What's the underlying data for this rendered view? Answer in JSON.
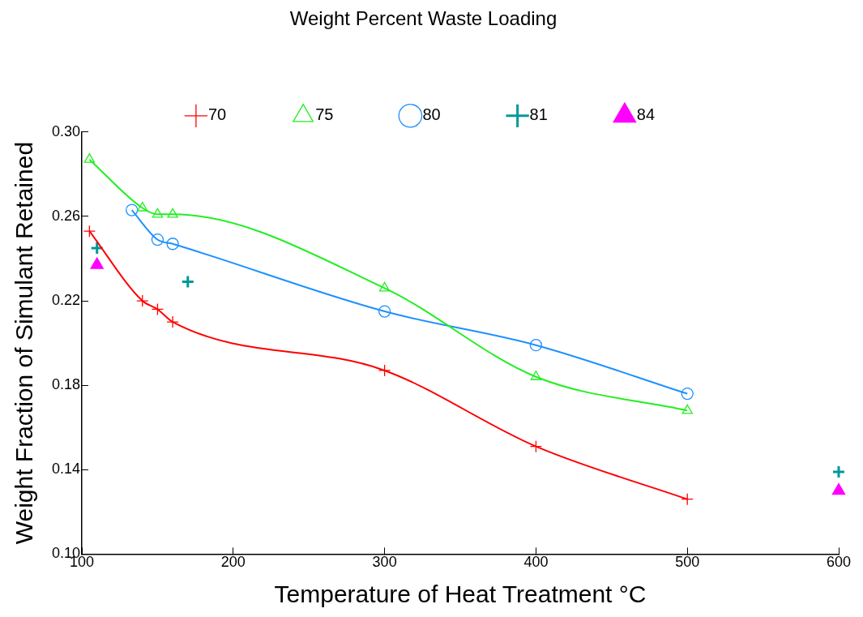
{
  "chart_data": {
    "type": "line",
    "xlabel": "Temperature of Heat Treatment °C",
    "ylabel": "Weight Fraction of Simulant Retained",
    "legend_title": "Weight Percent Waste Loading",
    "legend": "top",
    "grid": false,
    "xlim": [
      100,
      600
    ],
    "xticks": [
      100,
      200,
      300,
      400,
      500,
      600
    ],
    "ylim": [
      0.1,
      0.3
    ],
    "yticks": [
      {
        "value": 0.1,
        "label": "0.10"
      },
      {
        "value": 0.14,
        "label": "0.14"
      },
      {
        "value": 0.18,
        "label": "0.18"
      },
      {
        "value": 0.22,
        "label": "0.22"
      },
      {
        "value": 0.26,
        "label": "0.26"
      },
      {
        "value": 0.3,
        "label": "0.30"
      }
    ],
    "series": [
      {
        "name": "70",
        "type": "line",
        "marker": "cross",
        "color": "#ff0000",
        "x": [
          105,
          140,
          150,
          160,
          300,
          400,
          500
        ],
        "values": [
          0.253,
          0.22,
          0.216,
          0.21,
          0.187,
          0.151,
          0.126
        ]
      },
      {
        "name": "75",
        "type": "line",
        "marker": "triangle",
        "color": "#22ee22",
        "x": [
          105,
          140,
          150,
          160,
          300,
          400,
          500
        ],
        "values": [
          0.287,
          0.264,
          0.261,
          0.261,
          0.226,
          0.184,
          0.168
        ]
      },
      {
        "name": "80",
        "type": "line",
        "marker": "circle",
        "color": "#1e90ff",
        "x": [
          133,
          150,
          160,
          300,
          400,
          500
        ],
        "values": [
          0.263,
          0.249,
          0.247,
          0.215,
          0.199,
          0.176
        ]
      },
      {
        "name": "81",
        "type": "scatter",
        "marker": "cross",
        "color": "#009999",
        "x": [
          110,
          170,
          600
        ],
        "values": [
          0.245,
          0.229,
          0.139
        ]
      },
      {
        "name": "84",
        "type": "scatter",
        "marker": "triangle",
        "color": "#ff00ff",
        "x": [
          110,
          600
        ],
        "values": [
          0.237,
          0.13
        ]
      }
    ]
  }
}
